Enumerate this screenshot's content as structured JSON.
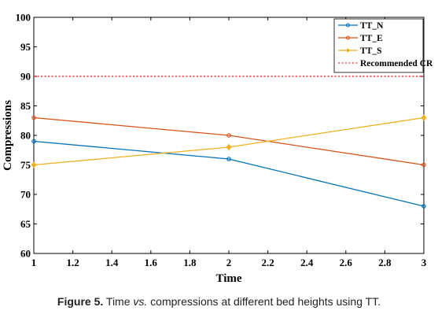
{
  "chart_data": {
    "type": "line",
    "title": "",
    "xlabel": "Time",
    "ylabel": "Compressions",
    "x": [
      1,
      2,
      3
    ],
    "xlim": [
      1,
      3
    ],
    "ylim": [
      60,
      100
    ],
    "xticks": [
      "1",
      "1.2",
      "1.4",
      "1.6",
      "1.8",
      "2",
      "2.2",
      "2.4",
      "2.6",
      "2.8",
      "3"
    ],
    "yticks": [
      "60",
      "65",
      "70",
      "75",
      "80",
      "85",
      "90",
      "95",
      "100"
    ],
    "grid": false,
    "legend_position": "top-right",
    "series": [
      {
        "name": "TT_N",
        "values": [
          79,
          76,
          68
        ],
        "color": "#0072BD",
        "marker": "circle"
      },
      {
        "name": "TT_E",
        "values": [
          83,
          80,
          75
        ],
        "color": "#D95319",
        "marker": "circle"
      },
      {
        "name": "TT_S",
        "values": [
          75,
          78,
          83
        ],
        "color": "#EDB120",
        "marker": "diamond"
      }
    ],
    "reference_line": {
      "name": "Recommended CR",
      "value": 90,
      "color": "#FF0000",
      "style": "dotted"
    }
  },
  "caption": {
    "label": "Figure 5.",
    "text_before": " Time ",
    "emphasis": "vs.",
    "text_after": " compressions at different bed heights using TT."
  }
}
